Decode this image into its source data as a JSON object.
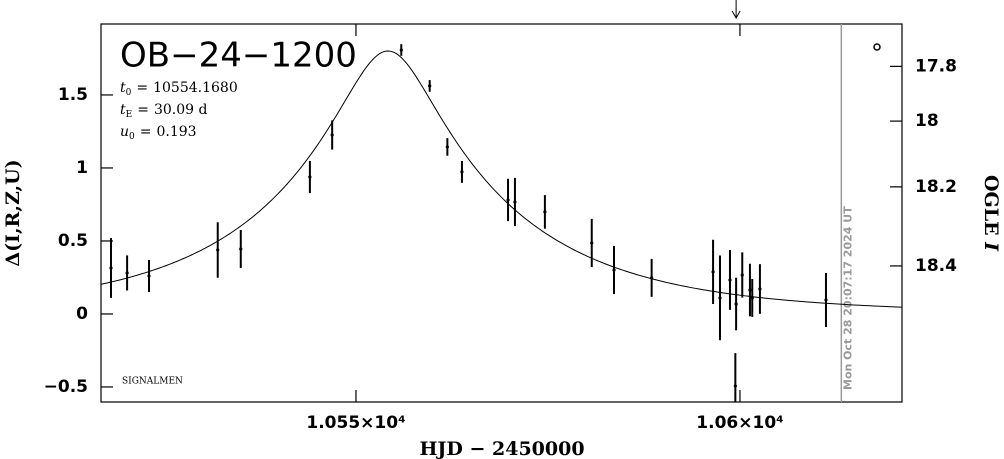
{
  "chart_data": {
    "type": "scatter",
    "title": "OB−24−1200",
    "params": [
      {
        "symbol": "t",
        "sub": "0",
        "relation": "=",
        "value": 10554.168,
        "value_label": "10554.1680"
      },
      {
        "symbol": "t",
        "sub": "E",
        "relation": "=",
        "value": 30.09,
        "value_label": "30.09 d"
      },
      {
        "symbol": "u",
        "sub": "0",
        "relation": "=",
        "value": 0.193,
        "value_label": "0.193"
      }
    ],
    "note": "SIGNALMEN",
    "x_label": "HJD − 2450000",
    "y_label": "Δ(I,R,Z,U)",
    "y2_label": {
      "text": "OGLE ",
      "italic": "I"
    },
    "x": [
      10518.1,
      10520.2,
      10523.05,
      10532.0,
      10535.0,
      10544.0,
      10546.9,
      10555.9,
      10559.6,
      10561.9,
      10563.8,
      10569.8,
      10570.7,
      10574.6,
      10580.7,
      10583.6,
      10588.5,
      10596.5,
      10597.4,
      10598.7,
      10599.5,
      10600.3,
      10601.3,
      10601.6,
      10602.6,
      10611.2,
      10599.4
    ],
    "values": [
      0.315,
      0.281,
      0.26,
      0.438,
      0.445,
      0.938,
      1.226,
      1.808,
      1.562,
      1.144,
      0.973,
      0.781,
      0.767,
      0.699,
      0.486,
      0.301,
      0.247,
      0.288,
      0.11,
      0.233,
      0.068,
      0.267,
      0.164,
      0.11,
      0.171,
      0.096,
      -0.493
    ],
    "errors": [
      0.205,
      0.12,
      0.11,
      0.19,
      0.13,
      0.11,
      0.1,
      0.04,
      0.04,
      0.06,
      0.075,
      0.145,
      0.165,
      0.115,
      0.165,
      0.165,
      0.13,
      0.22,
      0.29,
      0.205,
      0.18,
      0.155,
      0.18,
      0.13,
      0.17,
      0.185,
      0.225
    ],
    "color": "#000000",
    "xlim": [
      10516.8,
      10621.1
    ],
    "xticks": [
      {
        "value": 10550,
        "label": "1.055×10⁴"
      },
      {
        "value": 10600,
        "label": "1.06×10⁴"
      }
    ],
    "ylim": [
      -0.603,
      1.986
    ],
    "yticks": [
      {
        "value": -0.5,
        "label": "−0.5"
      },
      0,
      0.5,
      1,
      1.5
    ],
    "y2lim": [
      18.676,
      17.615
    ],
    "y2scale": "inverse-flux",
    "y2ticks": [
      17.8,
      18,
      18.2,
      18.4
    ],
    "markers": {
      "now": {
        "x": 10613.2,
        "label": "Mon Oct 28 20:07:17 2024 UT",
        "color": "#999999"
      },
      "arrow": {
        "x": 10599.5
      }
    }
  }
}
